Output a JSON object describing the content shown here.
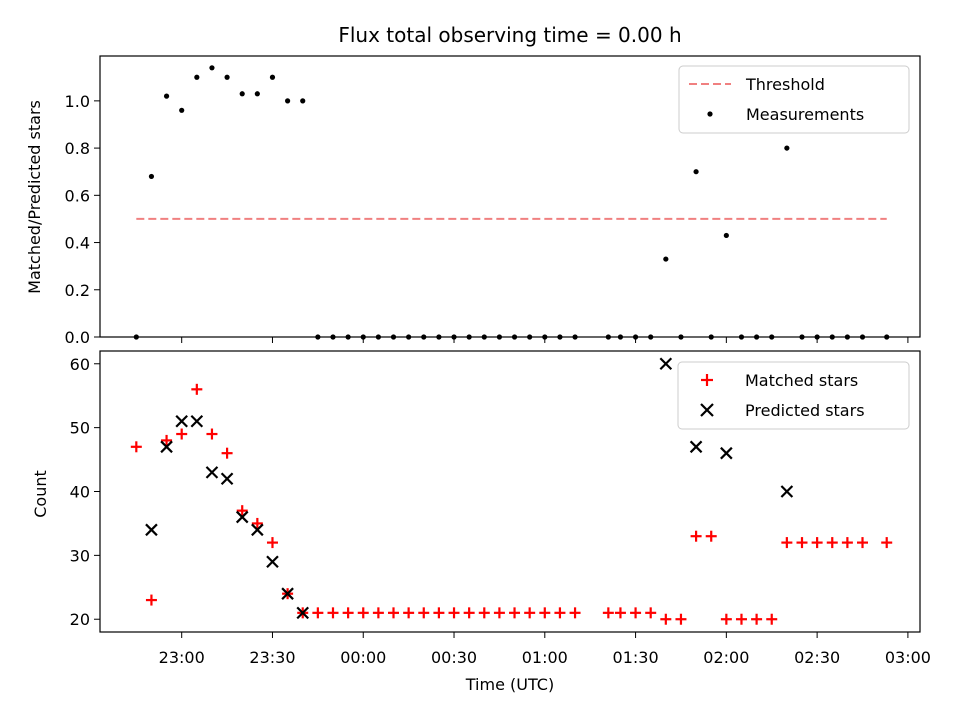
{
  "chart_data": [
    {
      "type": "scatter",
      "title": "Flux total observing time = 0.00 h",
      "xlabel": "",
      "ylabel": "Matched/Predicted stars",
      "xlim": [
        "22:33",
        "03:04"
      ],
      "ylim": [
        0,
        1.19
      ],
      "yticks": [
        0.0,
        0.2,
        0.4,
        0.6,
        0.8,
        1.0
      ],
      "ytick_labels": [
        "0.0",
        "0.2",
        "0.4",
        "0.6",
        "0.8",
        "1.0"
      ],
      "legend": {
        "position": "top-right",
        "entries": [
          "Threshold",
          "Measurements"
        ]
      },
      "threshold": {
        "name": "Threshold",
        "y": 0.5,
        "x_start": "22:45",
        "x_end": "02:53",
        "color": "#f08080",
        "style": "dashed"
      },
      "series": [
        {
          "name": "Measurements",
          "color": "#000000",
          "marker": "dot",
          "x": [
            "22:45",
            "22:50",
            "22:55",
            "23:00",
            "23:05",
            "23:10",
            "23:15",
            "23:20",
            "23:25",
            "23:30",
            "23:35",
            "23:40",
            "23:45",
            "23:50",
            "23:55",
            "00:00",
            "00:05",
            "00:10",
            "00:15",
            "00:20",
            "00:25",
            "00:30",
            "00:35",
            "00:40",
            "00:45",
            "00:50",
            "00:55",
            "01:00",
            "01:05",
            "01:10",
            "01:21",
            "01:25",
            "01:30",
            "01:35",
            "01:40",
            "01:45",
            "01:50",
            "01:55",
            "02:00",
            "02:05",
            "02:10",
            "02:15",
            "02:20",
            "02:25",
            "02:30",
            "02:35",
            "02:40",
            "02:45",
            "02:53"
          ],
          "y": [
            0.0,
            0.68,
            1.02,
            0.96,
            1.1,
            1.14,
            1.1,
            1.03,
            1.03,
            1.1,
            1.0,
            1.0,
            0,
            0,
            0,
            0,
            0,
            0,
            0,
            0,
            0,
            0,
            0,
            0,
            0,
            0,
            0,
            0,
            0,
            0,
            0,
            0,
            0,
            0,
            0.33,
            0,
            0.7,
            0,
            0.43,
            0,
            0,
            0,
            0.8,
            0,
            0,
            0,
            0,
            0,
            0
          ]
        }
      ]
    },
    {
      "type": "scatter",
      "title": "",
      "xlabel": "Time (UTC)",
      "ylabel": "Count",
      "xlim": [
        "22:33",
        "03:04"
      ],
      "ylim": [
        18,
        62
      ],
      "yticks": [
        20,
        30,
        40,
        50,
        60
      ],
      "ytick_labels": [
        "20",
        "30",
        "40",
        "50",
        "60"
      ],
      "xticks": [
        "23:00",
        "23:30",
        "00:00",
        "00:30",
        "01:00",
        "01:30",
        "02:00",
        "02:30",
        "03:00"
      ],
      "legend": {
        "position": "top-right",
        "entries": [
          "Matched stars",
          "Predicted stars"
        ]
      },
      "series": [
        {
          "name": "Matched stars",
          "color": "#ff0000",
          "marker": "plus",
          "x": [
            "22:45",
            "22:50",
            "22:55",
            "23:00",
            "23:05",
            "23:10",
            "23:15",
            "23:20",
            "23:25",
            "23:30",
            "23:35",
            "23:40",
            "23:45",
            "23:50",
            "23:55",
            "00:00",
            "00:05",
            "00:10",
            "00:15",
            "00:20",
            "00:25",
            "00:30",
            "00:35",
            "00:40",
            "00:45",
            "00:50",
            "00:55",
            "01:00",
            "01:05",
            "01:10",
            "01:21",
            "01:25",
            "01:30",
            "01:35",
            "01:40",
            "01:45",
            "01:50",
            "01:55",
            "02:00",
            "02:05",
            "02:10",
            "02:15",
            "02:20",
            "02:25",
            "02:30",
            "02:35",
            "02:40",
            "02:45",
            "02:53"
          ],
          "y": [
            47,
            23,
            48,
            49,
            56,
            49,
            46,
            37,
            35,
            32,
            24,
            21,
            21,
            21,
            21,
            21,
            21,
            21,
            21,
            21,
            21,
            21,
            21,
            21,
            21,
            21,
            21,
            21,
            21,
            21,
            21,
            21,
            21,
            21,
            20,
            20,
            33,
            33,
            20,
            20,
            20,
            20,
            32,
            32,
            32,
            32,
            32,
            32,
            32
          ]
        },
        {
          "name": "Predicted stars",
          "color": "#000000",
          "marker": "x",
          "x": [
            "22:50",
            "22:55",
            "23:00",
            "23:05",
            "23:10",
            "23:15",
            "23:20",
            "23:25",
            "23:30",
            "23:35",
            "23:40",
            "01:40",
            "01:50",
            "02:00",
            "02:20"
          ],
          "y": [
            34,
            47,
            51,
            51,
            43,
            42,
            36,
            34,
            29,
            24,
            21,
            60,
            47,
            46,
            40
          ]
        }
      ]
    }
  ]
}
